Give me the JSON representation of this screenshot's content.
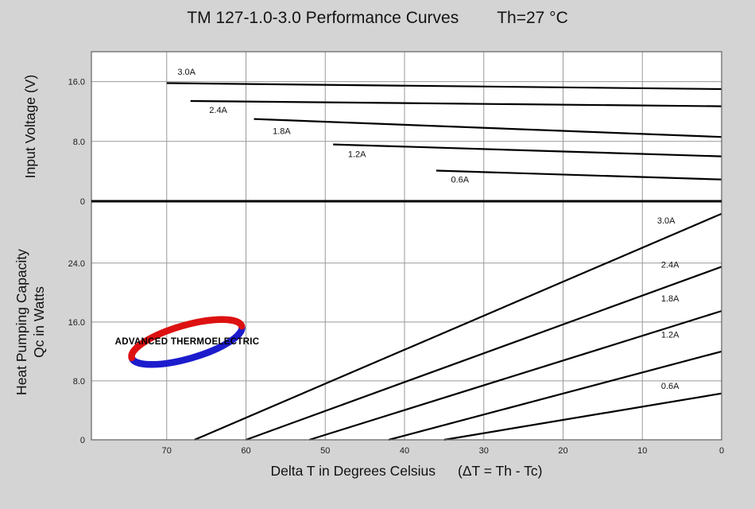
{
  "title": {
    "main": "TM 127-1.0-3.0 Performance Curves",
    "th_condition": "Th=27 °C"
  },
  "axes": {
    "x_label": "Delta T in Degrees Celsius",
    "x_label_formula": "(ΔT = Th - Tc)",
    "x_ticks": [
      70,
      60,
      50,
      40,
      30,
      20,
      10,
      0
    ],
    "top_y_label": "Input Voltage (V)",
    "bottom_y_label_line1": "Heat Pumping Capacity",
    "bottom_y_label_line2": "Qc in Watts"
  },
  "logo": {
    "text": "ADVANCED THERMOELECTRIC",
    "blue": "#1c1ccd",
    "red": "#dd1111"
  },
  "colors": {
    "background": "#d4d4d4",
    "plot_bg": "#ffffff",
    "grid": "#999999",
    "border": "#6b6b6b",
    "line": "#000000"
  },
  "chart_data": [
    {
      "type": "line",
      "panel": "top",
      "title": "Input Voltage vs Delta T",
      "xlabel": "Delta T in Degrees Celsius",
      "ylabel": "Input Voltage (V)",
      "x_reversed": true,
      "xlim": [
        0,
        79.5
      ],
      "ylim": [
        0,
        20
      ],
      "x_ticks": [
        70,
        60,
        50,
        40,
        30,
        20,
        10,
        0
      ],
      "y_ticks": [
        0,
        8,
        16
      ],
      "y_tick_labels": [
        "0",
        "8.0",
        "16.0"
      ],
      "grid": true,
      "series": [
        {
          "name": "3.0A",
          "points": [
            [
              70,
              15.8
            ],
            [
              0,
              15.0
            ]
          ],
          "label_at": [
            67.5,
            16.9
          ]
        },
        {
          "name": "2.4A",
          "points": [
            [
              67,
              13.4
            ],
            [
              0,
              12.7
            ]
          ],
          "label_at": [
            63.5,
            11.8
          ]
        },
        {
          "name": "1.8A",
          "points": [
            [
              59,
              11.0
            ],
            [
              0,
              8.6
            ]
          ],
          "label_at": [
            55.5,
            9.0
          ]
        },
        {
          "name": "1.2A",
          "points": [
            [
              49,
              7.6
            ],
            [
              0,
              6.0
            ]
          ],
          "label_at": [
            46,
            5.9
          ]
        },
        {
          "name": "0.6A",
          "points": [
            [
              36,
              4.1
            ],
            [
              0,
              2.9
            ]
          ],
          "label_at": [
            33,
            2.5
          ]
        }
      ]
    },
    {
      "type": "line",
      "panel": "bottom",
      "title": "Heat Pumping Capacity vs Delta T",
      "xlabel": "Delta T in Degrees Celsius",
      "ylabel": "Heat Pumping Capacity Qc in Watts",
      "x_reversed": true,
      "xlim": [
        0,
        79.5
      ],
      "ylim": [
        0,
        32.4
      ],
      "x_ticks": [
        70,
        60,
        50,
        40,
        30,
        20,
        10,
        0
      ],
      "y_ticks": [
        0,
        8,
        16,
        24
      ],
      "y_tick_labels": [
        "0",
        "8.0",
        "16.0",
        "24.0"
      ],
      "grid": true,
      "series": [
        {
          "name": "3.0A",
          "points": [
            [
              66.5,
              0
            ],
            [
              0,
              30.7
            ]
          ],
          "label_at": [
            7,
            29.4
          ]
        },
        {
          "name": "2.4A",
          "points": [
            [
              60,
              0
            ],
            [
              0,
              23.5
            ]
          ],
          "label_at": [
            6.5,
            23.4
          ]
        },
        {
          "name": "1.8A",
          "points": [
            [
              52,
              0
            ],
            [
              0,
              17.5
            ]
          ],
          "label_at": [
            6.5,
            18.8
          ]
        },
        {
          "name": "1.2A",
          "points": [
            [
              42,
              0
            ],
            [
              0,
              12.0
            ]
          ],
          "label_at": [
            6.5,
            13.9
          ]
        },
        {
          "name": "0.6A",
          "points": [
            [
              35,
              0
            ],
            [
              0,
              6.3
            ]
          ],
          "label_at": [
            6.5,
            6.9
          ]
        }
      ]
    }
  ]
}
